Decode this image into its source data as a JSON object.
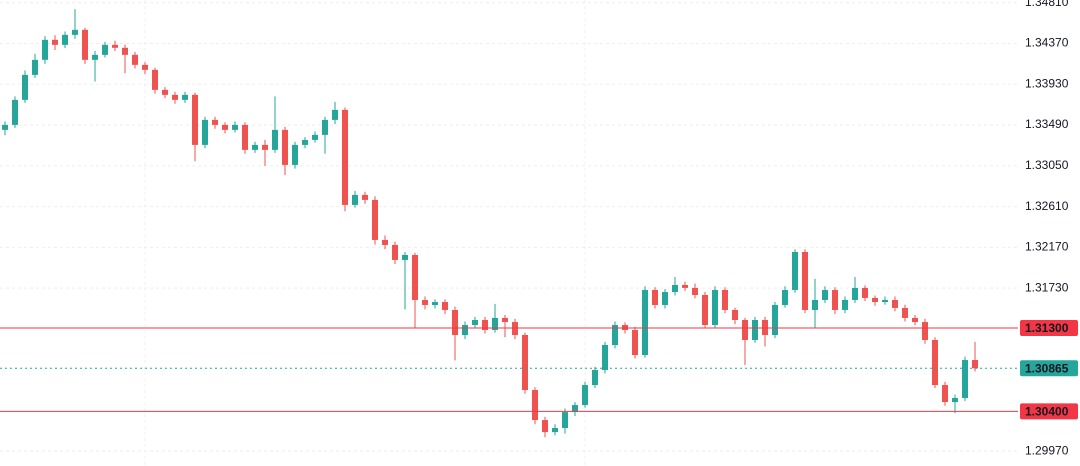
{
  "chart_data": {
    "type": "candlestick",
    "up_color": "#26a69a",
    "down_color": "#ef5350",
    "grid": true,
    "ylim": [
      1.2981,
      1.3484
    ],
    "yticks": [
      {
        "value": 1.3481,
        "label": "1.34810"
      },
      {
        "value": 1.3437,
        "label": "1.34370"
      },
      {
        "value": 1.3393,
        "label": "1.33930"
      },
      {
        "value": 1.3349,
        "label": "1.33490"
      },
      {
        "value": 1.3305,
        "label": "1.33050"
      },
      {
        "value": 1.3261,
        "label": "1.32610"
      },
      {
        "value": 1.3217,
        "label": "1.32170"
      },
      {
        "value": 1.3173,
        "label": "1.31730"
      },
      {
        "value": 1.2997,
        "label": "1.29970"
      }
    ],
    "price_lines": [
      {
        "value": 1.313,
        "label": "1.31300",
        "color": "#f23645",
        "style": "solid"
      },
      {
        "value": 1.30865,
        "label": "1.30865",
        "color": "#26a69a",
        "style": "dotted"
      },
      {
        "value": 1.304,
        "label": "1.30400",
        "color": "#f23645",
        "style": "solid"
      }
    ],
    "candles": [
      [
        1.33438,
        1.3353,
        1.3338,
        1.33492
      ],
      [
        1.33492,
        1.338,
        1.3346,
        1.33762
      ],
      [
        1.33762,
        1.3408,
        1.3373,
        1.34032
      ],
      [
        1.34032,
        1.3426,
        1.34,
        1.34194
      ],
      [
        1.34194,
        1.3445,
        1.3415,
        1.3441
      ],
      [
        1.3441,
        1.3446,
        1.343,
        1.34356
      ],
      [
        1.34356,
        1.345,
        1.3432,
        1.34464
      ],
      [
        1.34464,
        1.3474,
        1.3442,
        1.34518
      ],
      [
        1.34518,
        1.3454,
        1.3415,
        1.34194
      ],
      [
        1.34194,
        1.3429,
        1.3396,
        1.34248
      ],
      [
        1.34248,
        1.3439,
        1.3422,
        1.34356
      ],
      [
        1.34356,
        1.344,
        1.3429,
        1.34324
      ],
      [
        1.34324,
        1.3436,
        1.3405,
        1.34248
      ],
      [
        1.34248,
        1.3428,
        1.341,
        1.3414
      ],
      [
        1.3414,
        1.3417,
        1.3404,
        1.34086
      ],
      [
        1.34086,
        1.3411,
        1.3383,
        1.3387
      ],
      [
        1.3387,
        1.339,
        1.3378,
        1.33816
      ],
      [
        1.33816,
        1.3385,
        1.3372,
        1.33762
      ],
      [
        1.33762,
        1.3385,
        1.3373,
        1.33816
      ],
      [
        1.33816,
        1.3384,
        1.331,
        1.33276
      ],
      [
        1.33276,
        1.3358,
        1.3324,
        1.33546
      ],
      [
        1.33546,
        1.3358,
        1.3345,
        1.33492
      ],
      [
        1.33492,
        1.3352,
        1.334,
        1.33438
      ],
      [
        1.33438,
        1.3353,
        1.3341,
        1.33492
      ],
      [
        1.33492,
        1.3352,
        1.3318,
        1.33222
      ],
      [
        1.33222,
        1.3331,
        1.3319,
        1.33276
      ],
      [
        1.33276,
        1.3333,
        1.3305,
        1.33222
      ],
      [
        1.33222,
        1.338,
        1.3319,
        1.33438
      ],
      [
        1.33438,
        1.3347,
        1.3295,
        1.3306
      ],
      [
        1.3306,
        1.3331,
        1.3302,
        1.33276
      ],
      [
        1.33276,
        1.3336,
        1.3324,
        1.3333
      ],
      [
        1.3333,
        1.3342,
        1.333,
        1.33384
      ],
      [
        1.33384,
        1.3358,
        1.3318,
        1.33546
      ],
      [
        1.33546,
        1.3374,
        1.335,
        1.33654
      ],
      [
        1.33654,
        1.3368,
        1.3256,
        1.32628
      ],
      [
        1.32628,
        1.3278,
        1.326,
        1.32736
      ],
      [
        1.32736,
        1.3277,
        1.3264,
        1.32682
      ],
      [
        1.32682,
        1.3272,
        1.322,
        1.3225
      ],
      [
        1.3225,
        1.323,
        1.3215,
        1.32196
      ],
      [
        1.32196,
        1.3223,
        1.3199,
        1.32034
      ],
      [
        1.32034,
        1.3212,
        1.315,
        1.32088
      ],
      [
        1.32088,
        1.3211,
        1.313,
        1.31602
      ],
      [
        1.31602,
        1.3164,
        1.315,
        1.31548
      ],
      [
        1.31548,
        1.3161,
        1.3151,
        1.3158
      ],
      [
        1.3158,
        1.3161,
        1.3145,
        1.31494
      ],
      [
        1.31494,
        1.3153,
        1.3095,
        1.31224
      ],
      [
        1.31224,
        1.3137,
        1.3118,
        1.31332
      ],
      [
        1.31332,
        1.3142,
        1.313,
        1.31386
      ],
      [
        1.31386,
        1.3142,
        1.3124,
        1.31278
      ],
      [
        1.31278,
        1.3156,
        1.3125,
        1.31408
      ],
      [
        1.31408,
        1.3144,
        1.312,
        1.31364
      ],
      [
        1.31364,
        1.314,
        1.3118,
        1.31224
      ],
      [
        1.31224,
        1.3125,
        1.3059,
        1.3063
      ],
      [
        1.3063,
        1.3066,
        1.3026,
        1.30306
      ],
      [
        1.30306,
        1.3034,
        1.3012,
        1.30176
      ],
      [
        1.30176,
        1.3026,
        1.3014,
        1.3022
      ],
      [
        1.3022,
        1.3043,
        1.3016,
        1.30392
      ],
      [
        1.30392,
        1.305,
        1.3035,
        1.30468
      ],
      [
        1.30468,
        1.3072,
        1.3044,
        1.30684
      ],
      [
        1.30684,
        1.3088,
        1.3065,
        1.30846
      ],
      [
        1.30846,
        1.3115,
        1.3081,
        1.31116
      ],
      [
        1.31116,
        1.3137,
        1.3108,
        1.31332
      ],
      [
        1.31332,
        1.3136,
        1.3124,
        1.31278
      ],
      [
        1.31278,
        1.3131,
        1.3097,
        1.31008
      ],
      [
        1.31008,
        1.3175,
        1.3098,
        1.3171
      ],
      [
        1.3171,
        1.3174,
        1.3151,
        1.31548
      ],
      [
        1.31548,
        1.3172,
        1.3151,
        1.31688
      ],
      [
        1.31688,
        1.3185,
        1.3165,
        1.31764
      ],
      [
        1.31764,
        1.318,
        1.317,
        1.31732
      ],
      [
        1.31732,
        1.3178,
        1.3162,
        1.31656
      ],
      [
        1.31656,
        1.3169,
        1.313,
        1.31332
      ],
      [
        1.31332,
        1.3175,
        1.313,
        1.3171
      ],
      [
        1.3171,
        1.3174,
        1.3146,
        1.31494
      ],
      [
        1.31494,
        1.3152,
        1.3134,
        1.31386
      ],
      [
        1.31386,
        1.3141,
        1.309,
        1.3117
      ],
      [
        1.3117,
        1.3142,
        1.3114,
        1.31386
      ],
      [
        1.31386,
        1.3142,
        1.311,
        1.31224
      ],
      [
        1.31224,
        1.3158,
        1.3119,
        1.31548
      ],
      [
        1.31548,
        1.3175,
        1.3152,
        1.3171
      ],
      [
        1.3171,
        1.3215,
        1.3168,
        1.3212
      ],
      [
        1.3212,
        1.3215,
        1.3146,
        1.31494
      ],
      [
        1.31494,
        1.3183,
        1.313,
        1.31602
      ],
      [
        1.31602,
        1.3175,
        1.3157,
        1.3171
      ],
      [
        1.3171,
        1.3174,
        1.3145,
        1.31494
      ],
      [
        1.31494,
        1.3164,
        1.3146,
        1.31602
      ],
      [
        1.31602,
        1.3185,
        1.3157,
        1.31732
      ],
      [
        1.31732,
        1.3176,
        1.3159,
        1.31624
      ],
      [
        1.31624,
        1.3165,
        1.3154,
        1.3158
      ],
      [
        1.3158,
        1.3164,
        1.3155,
        1.31602
      ],
      [
        1.31602,
        1.3164,
        1.3148,
        1.31516
      ],
      [
        1.31516,
        1.3155,
        1.3137,
        1.31408
      ],
      [
        1.31408,
        1.3144,
        1.3133,
        1.31364
      ],
      [
        1.31364,
        1.314,
        1.3113,
        1.3117
      ],
      [
        1.3117,
        1.312,
        1.3065,
        1.30684
      ],
      [
        1.30684,
        1.3072,
        1.3046,
        1.305
      ],
      [
        1.305,
        1.3058,
        1.3038,
        1.30544
      ],
      [
        1.30544,
        1.3099,
        1.3051,
        1.30954
      ],
      [
        1.30954,
        1.3115,
        1.3083,
        1.30865
      ]
    ]
  }
}
